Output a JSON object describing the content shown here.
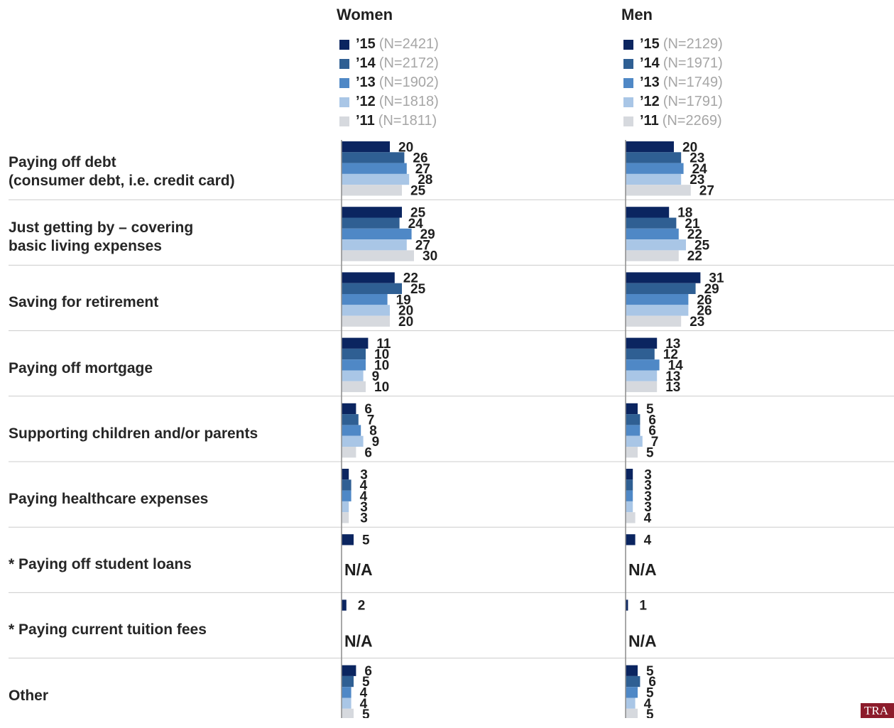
{
  "colors": {
    "y15": "#0b2560",
    "y14": "#2f5f93",
    "y13": "#4f88c6",
    "y12": "#a9c6e6",
    "y11": "#d6d9de",
    "axis": "#8c8c8c",
    "separator": "#cccccc",
    "logo": "#8c1c2b"
  },
  "logo_text": "TRA",
  "chart_data": {
    "type": "bar",
    "orientation": "horizontal",
    "categories": [
      "Paying off debt\n(consumer debt, i.e. credit card)",
      "Just getting by – covering\nbasic living expenses",
      "Saving for retirement",
      "Paying off mortgage",
      "Supporting children and/or parents",
      "Paying healthcare expenses",
      "* Paying off student loans",
      "* Paying current tuition fees",
      "Other"
    ],
    "na_label": "N/A",
    "groups": [
      {
        "title": "Women",
        "series": [
          {
            "name": "’15",
            "n": "(N=2421)",
            "values": [
              20,
              25,
              22,
              11,
              6,
              3,
              5,
              2,
              6
            ]
          },
          {
            "name": "’14",
            "n": "(N=2172)",
            "values": [
              26,
              24,
              25,
              10,
              7,
              4,
              null,
              null,
              5
            ]
          },
          {
            "name": "’13",
            "n": "(N=1902)",
            "values": [
              27,
              29,
              19,
              10,
              8,
              4,
              null,
              null,
              4
            ]
          },
          {
            "name": "’12",
            "n": "(N=1818)",
            "values": [
              28,
              27,
              20,
              9,
              9,
              3,
              null,
              null,
              4
            ]
          },
          {
            "name": "’11",
            "n": "(N=1811)",
            "values": [
              25,
              30,
              20,
              10,
              6,
              3,
              null,
              null,
              5
            ]
          }
        ]
      },
      {
        "title": "Men",
        "series": [
          {
            "name": "’15",
            "n": "(N=2129)",
            "values": [
              20,
              18,
              31,
              13,
              5,
              3,
              4,
              1,
              5
            ]
          },
          {
            "name": "’14",
            "n": "(N=1971)",
            "values": [
              23,
              21,
              29,
              12,
              6,
              3,
              null,
              null,
              6
            ]
          },
          {
            "name": "’13",
            "n": "(N=1749)",
            "values": [
              24,
              22,
              26,
              14,
              6,
              3,
              null,
              null,
              5
            ]
          },
          {
            "name": "’12",
            "n": "(N=1791)",
            "values": [
              23,
              25,
              26,
              13,
              7,
              3,
              null,
              null,
              4
            ]
          },
          {
            "name": "’11",
            "n": "(N=2269)",
            "values": [
              27,
              22,
              23,
              13,
              5,
              4,
              null,
              null,
              5
            ]
          }
        ]
      }
    ]
  }
}
